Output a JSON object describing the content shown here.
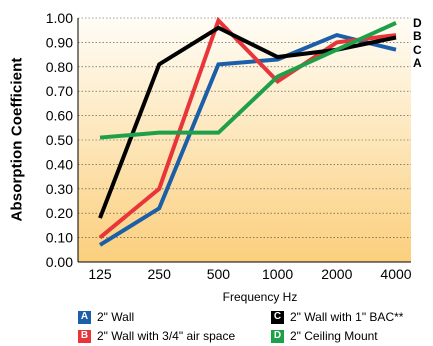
{
  "chart_data": {
    "type": "line",
    "title": "",
    "xlabel": "Frequency Hz",
    "ylabel": "Absorption Coefficient",
    "categories": [
      "125",
      "250",
      "500",
      "1000",
      "2000",
      "4000"
    ],
    "ylim": [
      0,
      1.0
    ],
    "yticks": [
      "0.00",
      "0.10",
      "0.20",
      "0.30",
      "0.40",
      "0.50",
      "0.60",
      "0.70",
      "0.80",
      "0.90",
      "1.00"
    ],
    "grid": true,
    "series": [
      {
        "key": "A",
        "name": "2\" Wall",
        "color": "#1a5fa8",
        "values": [
          0.07,
          0.22,
          0.81,
          0.83,
          0.93,
          0.87
        ]
      },
      {
        "key": "B",
        "name": "2\" Wall with 3/4\" air space",
        "color": "#e8353a",
        "values": [
          0.1,
          0.3,
          0.99,
          0.74,
          0.9,
          0.93
        ]
      },
      {
        "key": "C",
        "name": "2\" Wall with 1\" BAC**",
        "color": "#000000",
        "values": [
          0.18,
          0.81,
          0.96,
          0.84,
          0.87,
          0.92
        ]
      },
      {
        "key": "D",
        "name": "2\" Ceiling Mount",
        "color": "#1ea04a",
        "values": [
          0.51,
          0.53,
          0.53,
          0.76,
          0.87,
          0.98
        ]
      }
    ],
    "end_labels": [
      "D",
      "B",
      "C",
      "A"
    ]
  }
}
